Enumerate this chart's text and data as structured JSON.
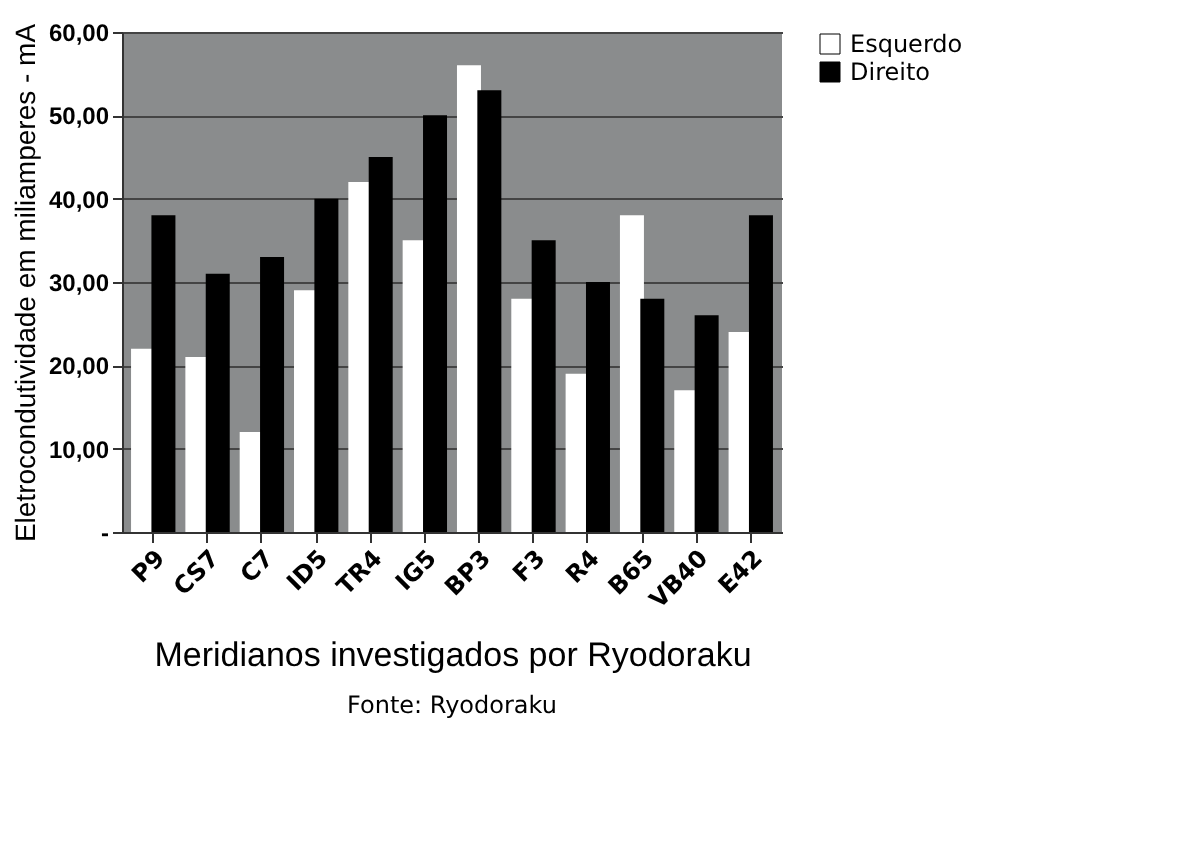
{
  "chart_data": {
    "type": "bar",
    "categories": [
      "P9",
      "CS7",
      "C7",
      "ID5",
      "TR4",
      "IG5",
      "BP3",
      "F3",
      "R4",
      "B65",
      "VB40",
      "E42"
    ],
    "series": [
      {
        "name": "Esquerdo",
        "color": "#ffffff",
        "values": [
          22,
          21,
          12,
          29,
          42,
          35,
          56,
          28,
          19,
          38,
          17,
          24
        ]
      },
      {
        "name": "Direito",
        "color": "#000000",
        "values": [
          38,
          31,
          33,
          40,
          45,
          50,
          53,
          35,
          30,
          28,
          26,
          38
        ]
      }
    ],
    "ylim": [
      0,
      60
    ],
    "yticks": [
      {
        "value": 0,
        "label": "-"
      },
      {
        "value": 10,
        "label": "10,00"
      },
      {
        "value": 20,
        "label": "20,00"
      },
      {
        "value": 30,
        "label": "30,00"
      },
      {
        "value": 40,
        "label": "40,00"
      },
      {
        "value": 50,
        "label": "50,00"
      },
      {
        "value": 60,
        "label": "60,00"
      }
    ],
    "ylabel": "Eletrocondutividade em miliamperes - mA",
    "xlabel": "Meridianos  investigados por Ryodoraku",
    "grid": "y",
    "legend": "right",
    "annotations": [
      "Fonte: Ryodoraku"
    ]
  }
}
